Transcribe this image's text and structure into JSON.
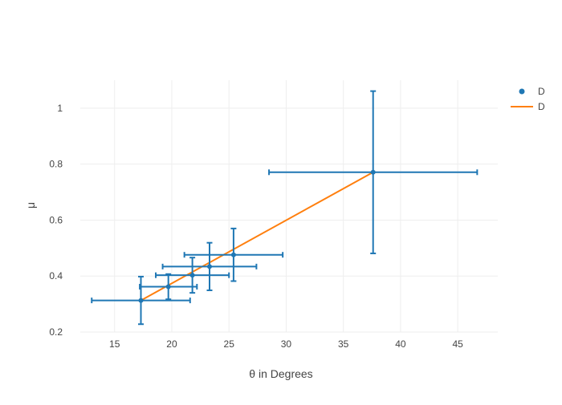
{
  "chart_data": {
    "type": "scatter",
    "xlabel": "θ in Degrees",
    "ylabel": "μ",
    "xlim": [
      12,
      48.5
    ],
    "ylim": [
      0.2,
      1.1
    ],
    "xticks": [
      15,
      20,
      25,
      30,
      35,
      40,
      45
    ],
    "yticks": [
      0.2,
      0.4,
      0.6,
      0.8,
      1.0
    ],
    "ytick_labels": [
      "0.2",
      "0.4",
      "0.6",
      "0.8",
      "1"
    ],
    "grid": true,
    "legend_position": "top-right",
    "series": [
      {
        "name": "D",
        "mode": "markers",
        "color": "#1f77b4",
        "points": [
          {
            "x": 17.3,
            "y": 0.313,
            "xerr": 4.3,
            "yerr": 0.085
          },
          {
            "x": 19.7,
            "y": 0.362,
            "xerr": 2.5,
            "yerr": 0.045
          },
          {
            "x": 21.8,
            "y": 0.403,
            "xerr": 3.2,
            "yerr": 0.063
          },
          {
            "x": 23.3,
            "y": 0.434,
            "xerr": 4.1,
            "yerr": 0.085
          },
          {
            "x": 25.4,
            "y": 0.476,
            "xerr": 4.3,
            "yerr": 0.094
          },
          {
            "x": 37.6,
            "y": 0.771,
            "xerr": 9.1,
            "yerr": 0.29
          }
        ]
      },
      {
        "name": "D",
        "mode": "lines",
        "color": "#ff7f0e",
        "x": [
          17.3,
          37.6
        ],
        "y": [
          0.313,
          0.771
        ]
      }
    ]
  }
}
